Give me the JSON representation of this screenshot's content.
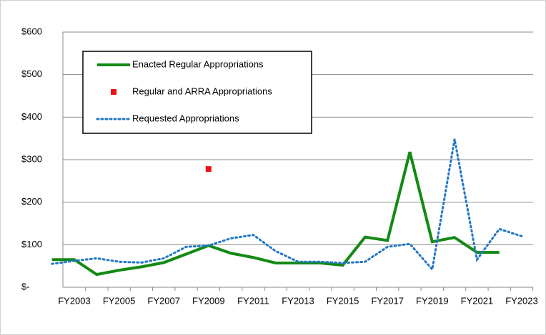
{
  "chart_data": {
    "type": "line",
    "categories": [
      null,
      "FY2003",
      null,
      "FY2005",
      null,
      "FY2007",
      null,
      "FY2009",
      null,
      "FY2011",
      null,
      "FY2013",
      null,
      "FY2015",
      null,
      "FY2017",
      null,
      "FY2019",
      null,
      "FY2021",
      null,
      "FY2023"
    ],
    "series": [
      {
        "name": "Enacted Regular Appropriations",
        "color": "#138a13",
        "style": "solid",
        "values": [
          65,
          65,
          30,
          40,
          48,
          58,
          78,
          98,
          80,
          70,
          57,
          57,
          57,
          52,
          118,
          110,
          318,
          107,
          117,
          82,
          82,
          null
        ]
      },
      {
        "name": "Regular and ARRA Appropriations",
        "color": "#ee1111",
        "style": "marker",
        "values": [
          null,
          null,
          null,
          null,
          null,
          null,
          null,
          278,
          null,
          null,
          null,
          null,
          null,
          null,
          null,
          null,
          null,
          null,
          null,
          null,
          null,
          null
        ]
      },
      {
        "name": "Requested Appropriations",
        "color": "#1f77c4",
        "style": "dotted",
        "values": [
          55,
          62,
          68,
          60,
          58,
          68,
          95,
          98,
          115,
          123,
          85,
          60,
          60,
          57,
          60,
          95,
          102,
          42,
          348,
          65,
          137,
          120
        ]
      }
    ],
    "ylim": [
      0,
      600
    ],
    "yticks": [
      {
        "value": 0,
        "label": "$-"
      },
      {
        "value": 100,
        "label": "$100"
      },
      {
        "value": 200,
        "label": "$200"
      },
      {
        "value": 300,
        "label": "$300"
      },
      {
        "value": 400,
        "label": "$400"
      },
      {
        "value": 500,
        "label": "$500"
      },
      {
        "value": 600,
        "label": "$600"
      }
    ],
    "grid": true,
    "legend": "upper left"
  }
}
